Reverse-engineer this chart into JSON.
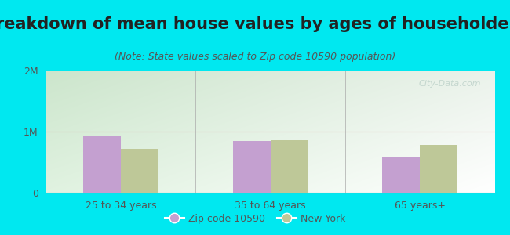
{
  "title": "Breakdown of mean house values by ages of householders",
  "subtitle": "(Note: State values scaled to Zip code 10590 population)",
  "categories": [
    "25 to 34 years",
    "35 to 64 years",
    "65 years+"
  ],
  "zip_values": [
    920000,
    840000,
    590000
  ],
  "ny_values": [
    720000,
    860000,
    780000
  ],
  "ylim": [
    0,
    2000000
  ],
  "ytick_labels": [
    "0",
    "1M",
    "2M"
  ],
  "zip_color": "#c4a0d0",
  "ny_color": "#bec898",
  "outer_bg": "#00e8f0",
  "legend_zip": "Zip code 10590",
  "legend_ny": "New York",
  "title_fontsize": 15,
  "subtitle_fontsize": 9,
  "gridline_color": "#e8b0b0",
  "watermark": "City-Data.com",
  "title_color": "#222222",
  "subtitle_color": "#555555",
  "tick_color": "#555555",
  "bg_grad_left": "#c8e8c0",
  "bg_grad_right": "#f0faf4"
}
